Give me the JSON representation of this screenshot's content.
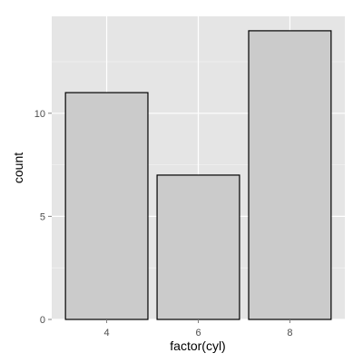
{
  "chart_data": {
    "type": "bar",
    "title": "",
    "xlabel": "factor(cyl)",
    "ylabel": "count",
    "categories": [
      "4",
      "6",
      "8"
    ],
    "values": [
      11,
      7,
      14
    ],
    "ylim": [
      0,
      14.7
    ],
    "y_ticks": [
      0,
      5,
      10
    ],
    "y_tick_labels": [
      "0",
      "5",
      "10"
    ],
    "grid": true,
    "legend": "none",
    "colors": {
      "panel_background": "#e5e5e5",
      "grid_major": "#ffffff",
      "grid_minor": "#f2f2f2",
      "bar_fill": "#cbcbcb",
      "bar_stroke": "#000000"
    }
  }
}
